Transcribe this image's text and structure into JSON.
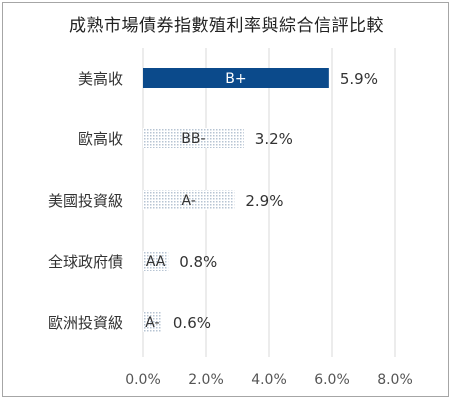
{
  "chart_data": {
    "type": "bar",
    "orientation": "horizontal",
    "title": "成熟市場債券指數殖利率與綜合信評比較",
    "categories": [
      "美高收",
      "歐高收",
      "美國投資級",
      "全球政府債",
      "歐洲投資級"
    ],
    "values": [
      5.9,
      3.2,
      2.9,
      0.8,
      0.6
    ],
    "value_labels": [
      "5.9%",
      "3.2%",
      "2.9%",
      "0.8%",
      "0.6%"
    ],
    "ratings": [
      "B+",
      "BB-",
      "A-",
      "AA",
      "A-"
    ],
    "highlight_index": 0,
    "xlim": [
      0,
      8
    ],
    "xticks": [
      0,
      2,
      4,
      6,
      8
    ],
    "xtick_labels": [
      "0.0%",
      "2.0%",
      "4.0%",
      "6.0%",
      "8.0%"
    ],
    "grid": "vertical",
    "colors": {
      "highlight": "#0b4a8b",
      "dotted_fill": "#cfd8e3",
      "gridline": "#d9d9d9",
      "highlight_text": "#ffffff",
      "rating_text": "#333333"
    }
  }
}
